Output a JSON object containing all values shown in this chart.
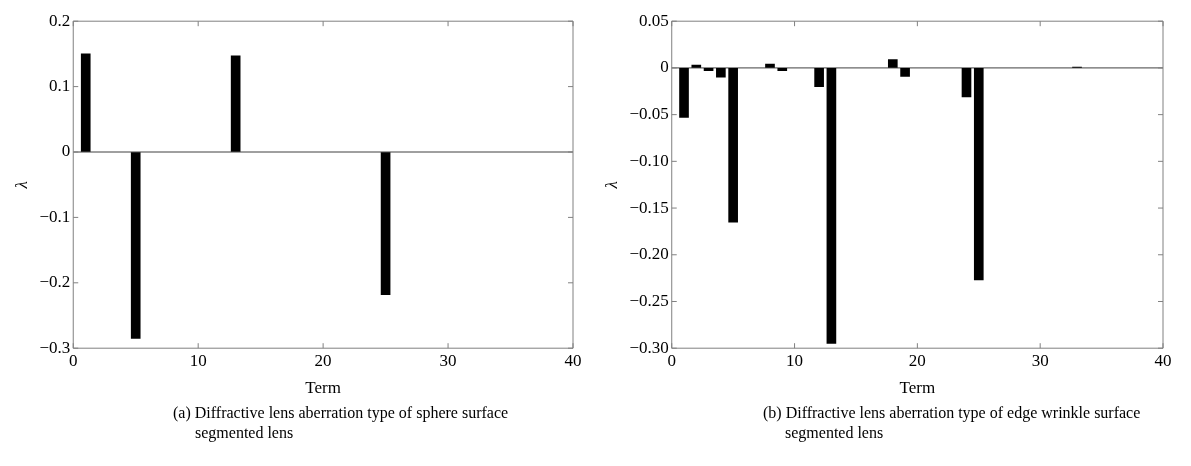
{
  "chart_data": [
    {
      "type": "bar",
      "title": "(a) Diffractive lens aberration type of sphere surface segmented lens",
      "xlabel": "Term",
      "ylabel": "λ",
      "x": [
        1,
        5,
        13,
        25
      ],
      "values": [
        0.15,
        -0.285,
        0.147,
        -0.218
      ],
      "color": "#000000",
      "xlim": [
        0,
        40
      ],
      "xticks": [
        0,
        10,
        20,
        30,
        40
      ],
      "ylim": [
        -0.3,
        0.2
      ],
      "yticks": [
        {
          "value": -0.3,
          "label": "−0.3"
        },
        {
          "value": -0.2,
          "label": "−0.2"
        },
        {
          "value": -0.1,
          "label": "−0.1"
        },
        0,
        0.1,
        0.2
      ],
      "ref_lines": [
        {
          "axis": "y",
          "value": 0
        }
      ],
      "grid": false,
      "legend": false
    },
    {
      "type": "bar",
      "title": "(b) Diffractive lens aberration type of edge wrinkle surface segmented lens",
      "xlabel": "Term",
      "ylabel": "λ",
      "x": [
        1,
        2,
        3,
        4,
        5,
        8,
        9,
        12,
        13,
        18,
        19,
        24,
        25,
        33
      ],
      "values": [
        -0.053,
        0.003,
        -0.003,
        -0.01,
        -0.165,
        0.004,
        -0.003,
        -0.02,
        -0.295,
        0.009,
        -0.009,
        -0.031,
        -0.227,
        0.001
      ],
      "color": "#000000",
      "xlim": [
        0,
        40
      ],
      "xticks": [
        0,
        10,
        20,
        30,
        40
      ],
      "ylim": [
        -0.3,
        0.05
      ],
      "yticks": [
        {
          "value": -0.3,
          "label": "−0.30"
        },
        {
          "value": -0.25,
          "label": "−0.25"
        },
        {
          "value": -0.2,
          "label": "−0.20"
        },
        {
          "value": -0.15,
          "label": "−0.15"
        },
        {
          "value": -0.1,
          "label": "−0.10"
        },
        {
          "value": -0.05,
          "label": "−0.05"
        },
        0,
        0.05
      ],
      "ref_lines": [
        {
          "axis": "y",
          "value": 0
        }
      ],
      "grid": false,
      "legend": false
    }
  ]
}
